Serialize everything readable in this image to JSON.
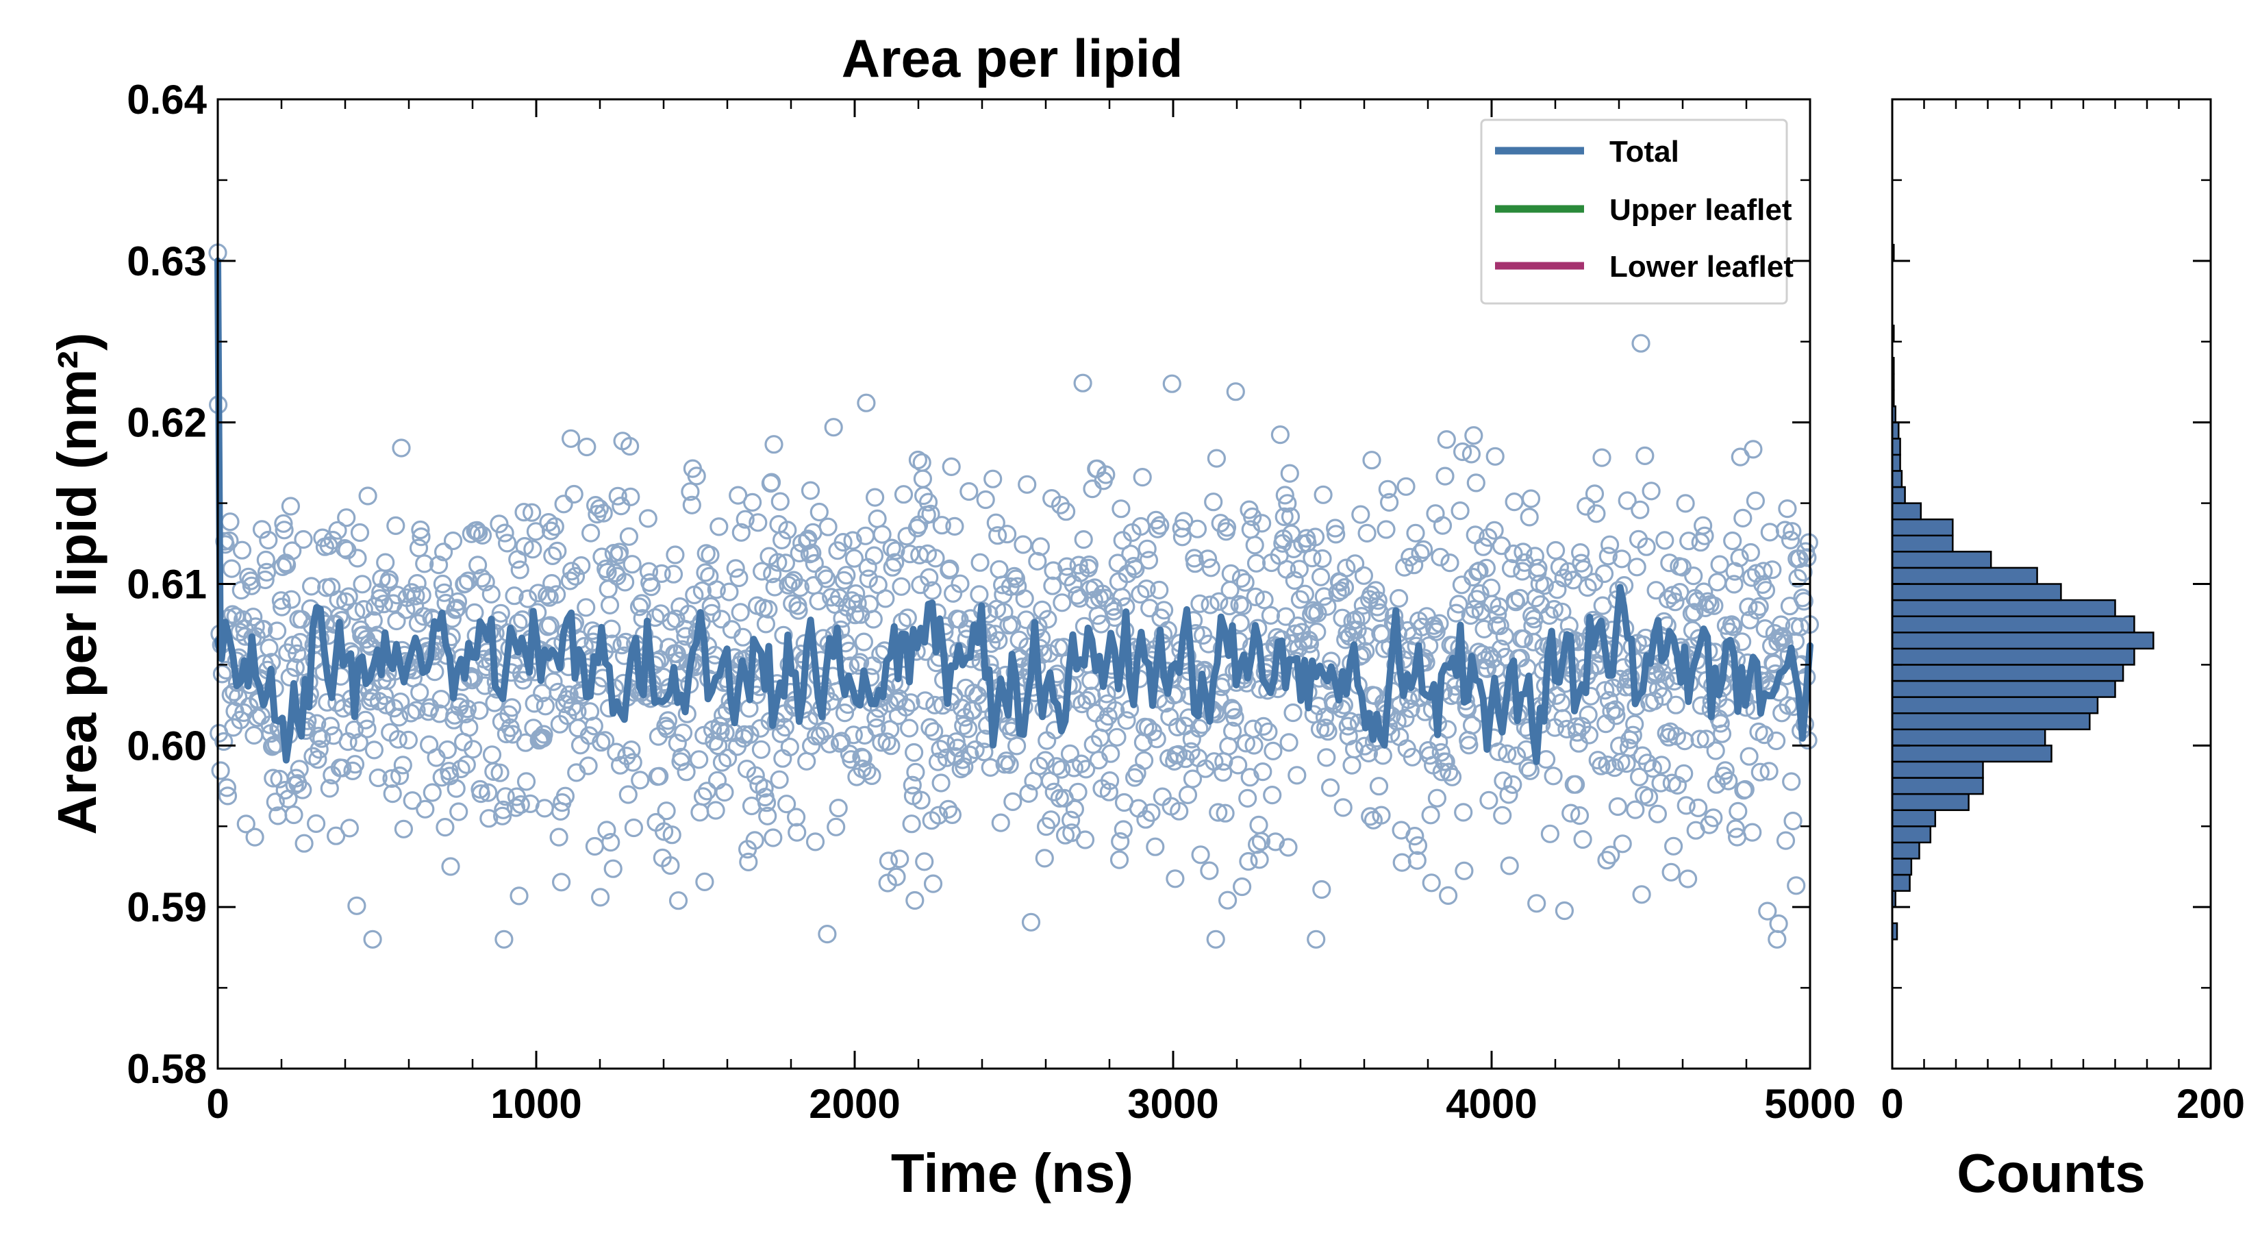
{
  "chart_data": [
    {
      "type": "scatter",
      "title": "Area per lipid",
      "xlabel": "Time (ns)",
      "ylabel": "Area per lipid (nm²)",
      "xlim": [
        0,
        5000
      ],
      "ylim": [
        0.58,
        0.64
      ],
      "xticks": [
        0,
        1000,
        2000,
        3000,
        4000,
        5000
      ],
      "yticks": [
        0.58,
        0.59,
        0.6,
        0.61,
        0.62,
        0.63,
        0.64
      ],
      "ytick_labels": [
        "0.58",
        "0.59",
        "0.60",
        "0.61",
        "0.62",
        "0.63",
        "0.64"
      ],
      "grid": false,
      "legend_position": "top-right",
      "series": [
        {
          "name": "Total",
          "style": "line",
          "color": "#4475a8",
          "points_note_mean": 0.605
        },
        {
          "name": "Upper leaflet",
          "style": "line",
          "color": "#2a8a3a"
        },
        {
          "name": "Lower leaflet",
          "style": "line",
          "color": "#a5326f"
        }
      ],
      "scatter": {
        "color": "#8fa9c8",
        "x_range": [
          0,
          5000
        ],
        "mean": 0.605,
        "std": 0.0058,
        "min": 0.588,
        "max": 0.6305
      },
      "running_average": {
        "color": "#4475a8",
        "mean": 0.605,
        "min": 0.599,
        "max": 0.611,
        "start_value": 0.63
      }
    },
    {
      "type": "bar",
      "orientation": "horizontal",
      "xlabel": "Counts",
      "xlim": [
        0,
        200
      ],
      "xticks": [
        0,
        200
      ],
      "ylim": [
        0.58,
        0.64
      ],
      "bar_color": "#4a72a6",
      "bins": [
        {
          "y0": 0.588,
          "y1": 0.589,
          "count": 3
        },
        {
          "y0": 0.59,
          "y1": 0.591,
          "count": 2
        },
        {
          "y0": 0.591,
          "y1": 0.592,
          "count": 11
        },
        {
          "y0": 0.592,
          "y1": 0.593,
          "count": 12
        },
        {
          "y0": 0.593,
          "y1": 0.594,
          "count": 17
        },
        {
          "y0": 0.594,
          "y1": 0.595,
          "count": 24
        },
        {
          "y0": 0.595,
          "y1": 0.596,
          "count": 27
        },
        {
          "y0": 0.596,
          "y1": 0.597,
          "count": 48
        },
        {
          "y0": 0.597,
          "y1": 0.598,
          "count": 57
        },
        {
          "y0": 0.598,
          "y1": 0.599,
          "count": 57
        },
        {
          "y0": 0.599,
          "y1": 0.6,
          "count": 100
        },
        {
          "y0": 0.6,
          "y1": 0.601,
          "count": 96
        },
        {
          "y0": 0.601,
          "y1": 0.602,
          "count": 124
        },
        {
          "y0": 0.602,
          "y1": 0.603,
          "count": 129
        },
        {
          "y0": 0.603,
          "y1": 0.604,
          "count": 140
        },
        {
          "y0": 0.604,
          "y1": 0.605,
          "count": 145
        },
        {
          "y0": 0.605,
          "y1": 0.606,
          "count": 152
        },
        {
          "y0": 0.606,
          "y1": 0.607,
          "count": 164
        },
        {
          "y0": 0.607,
          "y1": 0.608,
          "count": 152
        },
        {
          "y0": 0.608,
          "y1": 0.609,
          "count": 140
        },
        {
          "y0": 0.609,
          "y1": 0.61,
          "count": 106
        },
        {
          "y0": 0.61,
          "y1": 0.611,
          "count": 91
        },
        {
          "y0": 0.611,
          "y1": 0.612,
          "count": 62
        },
        {
          "y0": 0.612,
          "y1": 0.613,
          "count": 38
        },
        {
          "y0": 0.613,
          "y1": 0.614,
          "count": 38
        },
        {
          "y0": 0.614,
          "y1": 0.615,
          "count": 18
        },
        {
          "y0": 0.615,
          "y1": 0.616,
          "count": 8
        },
        {
          "y0": 0.616,
          "y1": 0.617,
          "count": 6
        },
        {
          "y0": 0.617,
          "y1": 0.618,
          "count": 5
        },
        {
          "y0": 0.618,
          "y1": 0.619,
          "count": 5
        },
        {
          "y0": 0.619,
          "y1": 0.62,
          "count": 4
        },
        {
          "y0": 0.62,
          "y1": 0.621,
          "count": 2
        },
        {
          "y0": 0.621,
          "y1": 0.622,
          "count": 1
        },
        {
          "y0": 0.622,
          "y1": 0.623,
          "count": 1
        },
        {
          "y0": 0.623,
          "y1": 0.624,
          "count": 1
        },
        {
          "y0": 0.625,
          "y1": 0.626,
          "count": 1
        },
        {
          "y0": 0.63,
          "y1": 0.631,
          "count": 1
        }
      ]
    }
  ]
}
